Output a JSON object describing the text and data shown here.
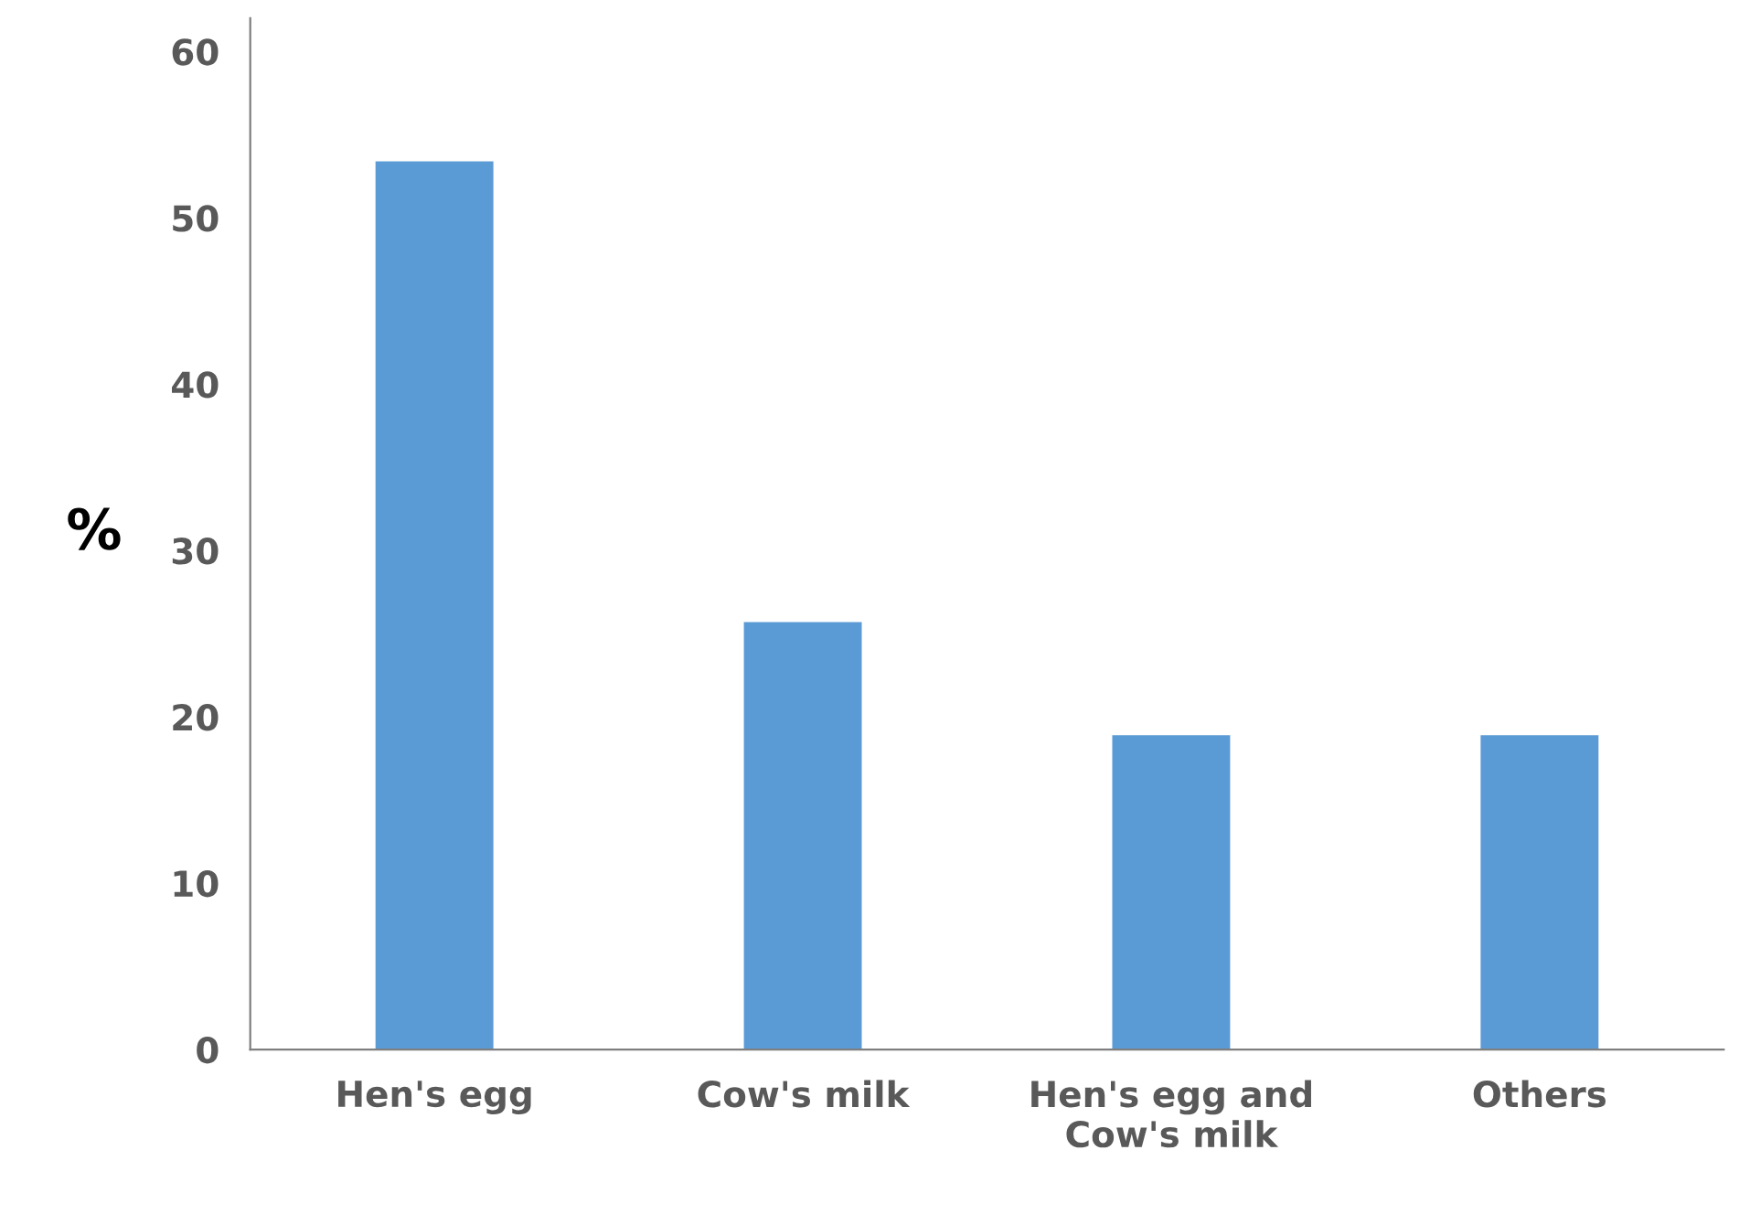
{
  "chart_data": {
    "type": "bar",
    "ylabel": "%",
    "categories": [
      "Hen's egg",
      "Cow's milk",
      "Hen's egg and\nCow's milk",
      "Others"
    ],
    "values": [
      53.4,
      25.7,
      18.9,
      18.9
    ],
    "color": "#5b9bd5",
    "ylim": [
      0,
      62
    ],
    "yticks": [
      0,
      10,
      20,
      30,
      40,
      50,
      60
    ],
    "grid": false,
    "legend": false
  }
}
